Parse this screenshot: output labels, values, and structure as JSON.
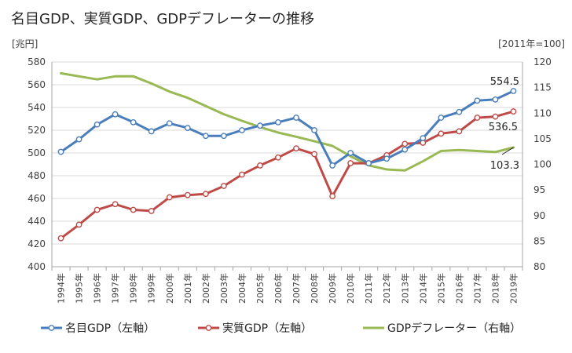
{
  "title": "名目GDP、実質GDP、GDPデフレーターの推移",
  "colors": {
    "nominal": "#4a7ebb",
    "real": "#be4b48",
    "deflator": "#98b954"
  },
  "chart_data": {
    "type": "line",
    "title": "名目GDP、実質GDP、GDPデフレーターの推移",
    "left_unit": "[兆円]",
    "right_unit": "[2011年=100]",
    "ylim_left": [
      400,
      580
    ],
    "ylim_right": [
      80,
      120
    ],
    "yticks_left": [
      "400",
      "420",
      "440",
      "460",
      "480",
      "500",
      "520",
      "540",
      "560",
      "580"
    ],
    "yticks_right": [
      "80",
      "85",
      "90",
      "95",
      "100",
      "105",
      "110",
      "115",
      "120"
    ],
    "categories": [
      "1994年",
      "1995年",
      "1996年",
      "1997年",
      "1998年",
      "1999年",
      "2000年",
      "2001年",
      "2002年",
      "2003年",
      "2004年",
      "2005年",
      "2006年",
      "2007年",
      "2008年",
      "2009年",
      "2010年",
      "2011年",
      "2012年",
      "2013年",
      "2014年",
      "2015年",
      "2016年",
      "2017年",
      "2018年",
      "2019年"
    ],
    "grid": true,
    "legend_position": "bottom",
    "series": [
      {
        "name": "名目GDP（左軸）",
        "axis": "left",
        "marker": "circle",
        "values": [
          501,
          512,
          525,
          534,
          527,
          519,
          526,
          522,
          515,
          515,
          520,
          524,
          527,
          531,
          520,
          489,
          500,
          491,
          495,
          503,
          513,
          531,
          536,
          546,
          547,
          554.5
        ]
      },
      {
        "name": "実質GDP（左軸）",
        "axis": "left",
        "marker": "circle",
        "values": [
          425,
          437,
          450,
          455,
          450,
          449,
          461,
          463,
          464,
          471,
          481,
          489,
          496,
          504,
          499,
          462,
          491,
          491,
          498,
          508,
          509,
          517,
          519,
          531,
          532,
          536.5
        ]
      },
      {
        "name": "GDPデフレーター（右軸）",
        "axis": "right",
        "marker": "none",
        "values": [
          117.8,
          117.2,
          116.6,
          117.2,
          117.2,
          115.8,
          114.2,
          113.0,
          111.4,
          109.8,
          108.5,
          107.3,
          106.2,
          105.4,
          104.5,
          103.6,
          101.6,
          99.8,
          99.0,
          98.8,
          100.6,
          102.6,
          102.8,
          102.6,
          102.4,
          103.3
        ]
      }
    ],
    "annotations": [
      "554.5",
      "536.5",
      "103.3"
    ]
  }
}
